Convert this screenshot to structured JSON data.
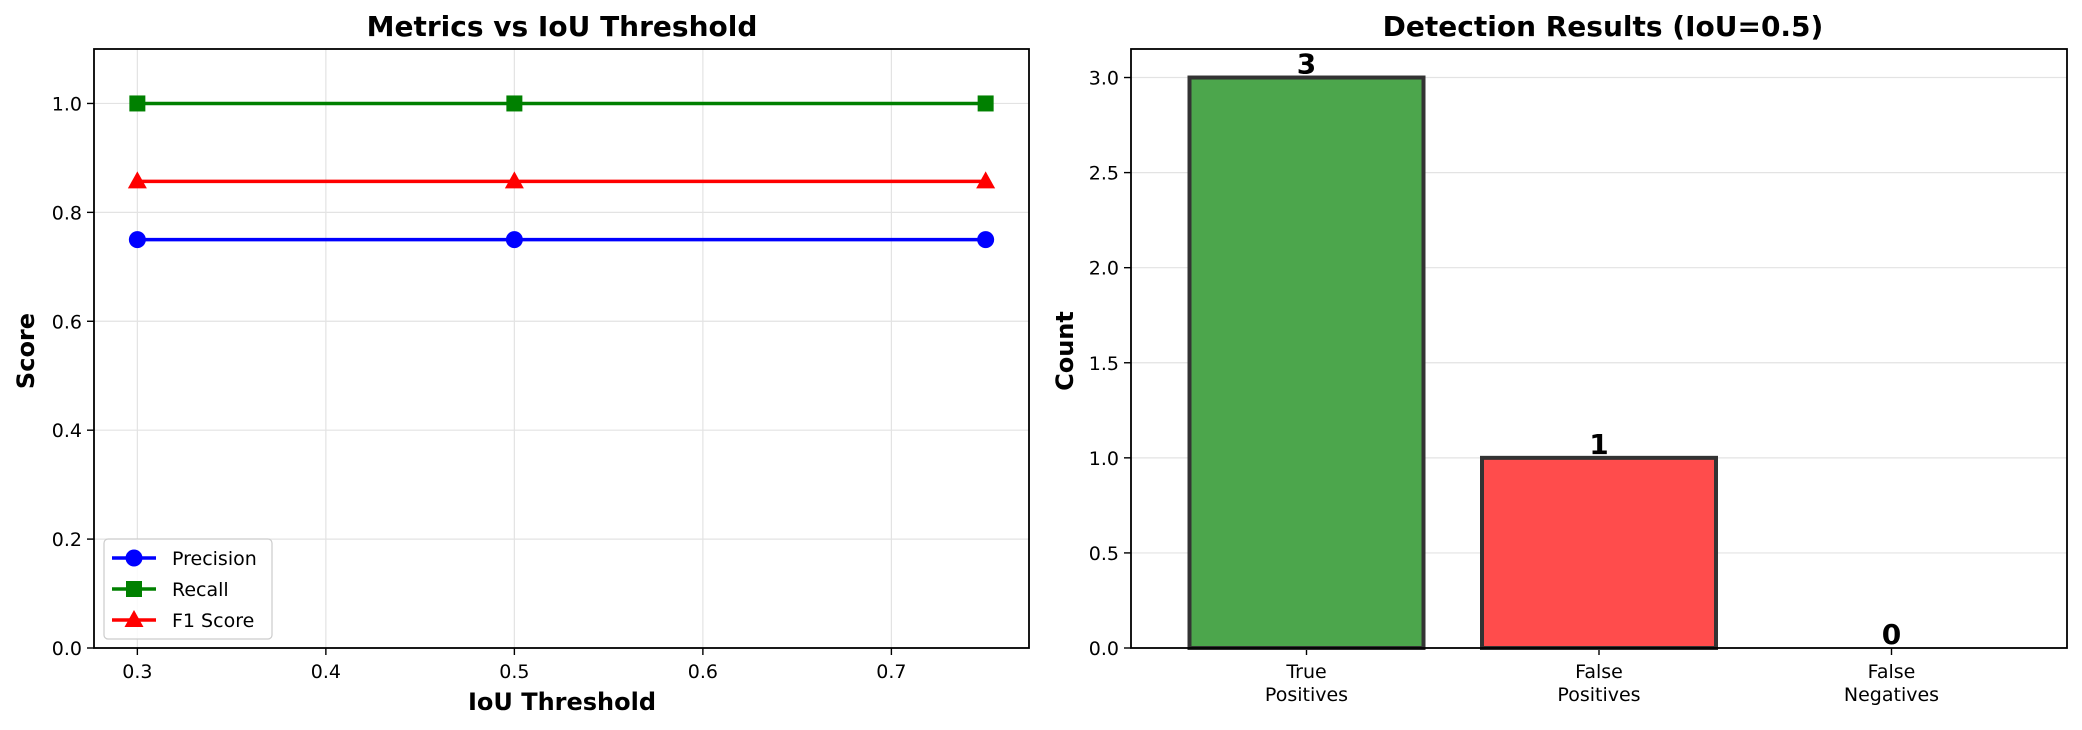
{
  "chart_data": [
    {
      "type": "line",
      "title": "Metrics vs IoU Threshold",
      "xlabel": "IoU Threshold",
      "ylabel": "Score",
      "x": [
        0.3,
        0.5,
        0.75
      ],
      "xlim": [
        0.277,
        0.773
      ],
      "ylim": [
        0.0,
        1.1
      ],
      "xticks": [
        0.3,
        0.4,
        0.5,
        0.6,
        0.7
      ],
      "yticks": [
        0.0,
        0.2,
        0.4,
        0.6,
        0.8,
        1.0
      ],
      "grid": true,
      "legend_position": "lower-left",
      "series": [
        {
          "name": "Precision",
          "values": [
            0.75,
            0.75,
            0.75
          ],
          "color": "#0000ff",
          "marker": "circle"
        },
        {
          "name": "Recall",
          "values": [
            1.0,
            1.0,
            1.0
          ],
          "color": "#008000",
          "marker": "square"
        },
        {
          "name": "F1 Score",
          "values": [
            0.857,
            0.857,
            0.857
          ],
          "color": "#ff0000",
          "marker": "triangle"
        }
      ]
    },
    {
      "type": "bar",
      "title": "Detection Results (IoU=0.5)",
      "xlabel": "",
      "ylabel": "Count",
      "categories": [
        "True\nPositives",
        "False\nPositives",
        "False\nNegatives"
      ],
      "values": [
        3,
        1,
        0
      ],
      "data_labels": [
        "3",
        "1",
        "0"
      ],
      "colors": [
        "#4ca64c",
        "#ff4c4c",
        "#4c4cff"
      ],
      "edge_color": "#333333",
      "ylim": [
        0.0,
        3.15
      ],
      "yticks": [
        0.0,
        0.5,
        1.0,
        1.5,
        2.0,
        2.5,
        3.0
      ],
      "grid": true
    }
  ]
}
